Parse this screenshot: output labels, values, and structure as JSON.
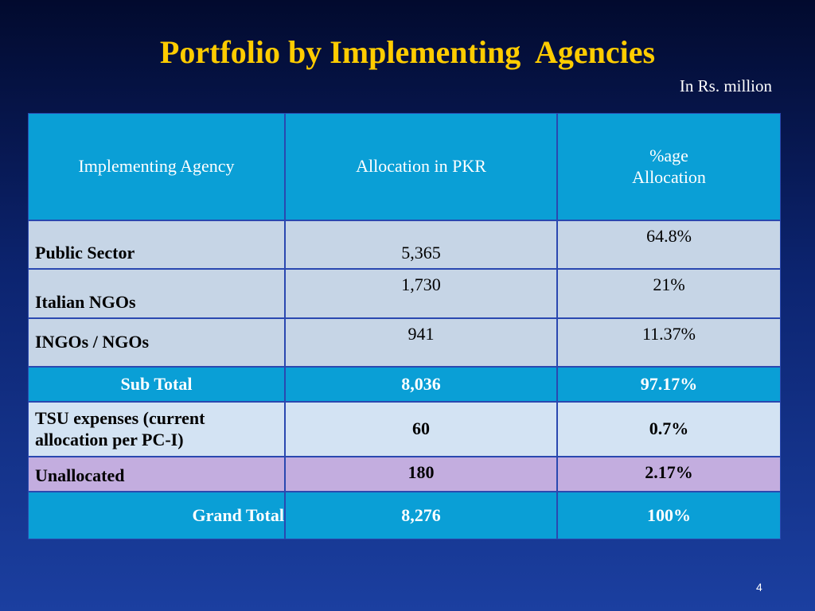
{
  "header": {
    "title": "Portfolio by Implementing  Agencies",
    "subtitle": "In Rs. million"
  },
  "table": {
    "columns": [
      [
        "Implementing Agency"
      ],
      [
        "Allocation in PKR"
      ],
      [
        "%age",
        "Allocation"
      ]
    ],
    "rows": [
      [
        "Public Sector",
        "5,365",
        "64.8%"
      ],
      [
        "Italian NGOs",
        "1,730",
        "21%"
      ],
      [
        "INGOs / NGOs",
        "941",
        "11.37%"
      ],
      [
        "Sub Total",
        "8,036",
        "97.17%"
      ],
      [
        "TSU expenses (current allocation per PC-I)",
        "60",
        "0.7%"
      ],
      [
        "Unallocated",
        "180",
        "2.17%"
      ],
      [
        "Grand Total",
        "8,276",
        "100%"
      ]
    ]
  },
  "footer": {
    "page_number": "4"
  }
}
